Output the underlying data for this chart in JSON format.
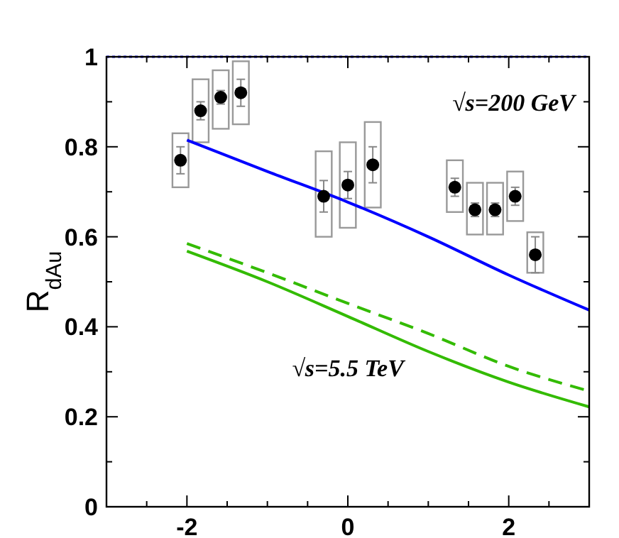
{
  "chart_data": {
    "type": "scatter",
    "ylabel": "R$_{dAu}$",
    "xlim": [
      -3,
      3
    ],
    "ylim": [
      0,
      1
    ],
    "xticks": [
      {
        "value": -3,
        "label": null
      },
      {
        "value": -2.5,
        "label": null
      },
      -2,
      {
        "value": -1.5,
        "label": null
      },
      {
        "value": -1,
        "label": null
      },
      {
        "value": -0.5,
        "label": null
      },
      0,
      {
        "value": 0.5,
        "label": null
      },
      {
        "value": 1,
        "label": null
      },
      {
        "value": 1.5,
        "label": null
      },
      2,
      {
        "value": 2.5,
        "label": null
      },
      {
        "value": 3,
        "label": null
      }
    ],
    "yticks": [
      0,
      {
        "value": 0.1,
        "label": null
      },
      0.2,
      {
        "value": 0.3,
        "label": null
      },
      0.4,
      {
        "value": 0.5,
        "label": null
      },
      0.6,
      {
        "value": 0.7,
        "label": null
      },
      0.8,
      {
        "value": 0.9,
        "label": null
      },
      1
    ],
    "grid": false,
    "annotations": [
      "√s=200 GeV",
      "√s=5.5 TeV"
    ],
    "ref_lines": [
      {
        "axis": "y",
        "value": 1,
        "color": "#0000ff",
        "line_style": "dotted"
      }
    ],
    "series": [
      {
        "type": "bar",
        "color": "#999999",
        "x": [
          -2.08,
          -1.83,
          -1.58,
          -1.33,
          -0.3,
          0,
          0.31,
          1.33,
          1.58,
          1.83,
          2.08,
          2.33
        ],
        "base": [
          0.71,
          0.81,
          0.84,
          0.85,
          0.6,
          0.62,
          0.665,
          0.655,
          0.605,
          0.605,
          0.635,
          0.52
        ],
        "values": [
          0.12,
          0.14,
          0.13,
          0.14,
          0.19,
          0.19,
          0.19,
          0.115,
          0.115,
          0.115,
          0.11,
          0.09
        ]
      },
      {
        "type": "line",
        "color": "#0000ff",
        "line_style": "solid",
        "marker": "none",
        "x": [
          -2,
          -1,
          0,
          1,
          2,
          3
        ],
        "values": [
          0.815,
          0.745,
          0.677,
          0.6,
          0.515,
          0.437
        ]
      },
      {
        "type": "line",
        "color": "#33bb00",
        "line_style": "solid",
        "marker": "none",
        "x": [
          -2,
          -1,
          0,
          1,
          2,
          3
        ],
        "values": [
          0.568,
          0.5,
          0.423,
          0.345,
          0.277,
          0.222
        ]
      },
      {
        "type": "line",
        "color": "#33bb00",
        "line_style": "dashed",
        "marker": "none",
        "x": [
          -2,
          -1,
          0,
          1,
          2,
          3
        ],
        "values": [
          0.585,
          0.52,
          0.452,
          0.385,
          0.312,
          0.257
        ]
      },
      {
        "color": "#000000",
        "marker": "circle",
        "x": [
          -2.08,
          -1.83,
          -1.58,
          -1.33,
          -0.3,
          0,
          0.31,
          1.33,
          1.58,
          1.83,
          2.08,
          2.33
        ],
        "values": [
          0.77,
          0.88,
          0.91,
          0.92,
          0.69,
          0.715,
          0.76,
          0.71,
          0.66,
          0.66,
          0.69,
          0.56
        ],
        "errors": [
          0.03,
          0.02,
          0.015,
          0.03,
          0.035,
          0.03,
          0.04,
          0.02,
          0.015,
          0.015,
          0.02,
          0.04
        ]
      }
    ]
  }
}
